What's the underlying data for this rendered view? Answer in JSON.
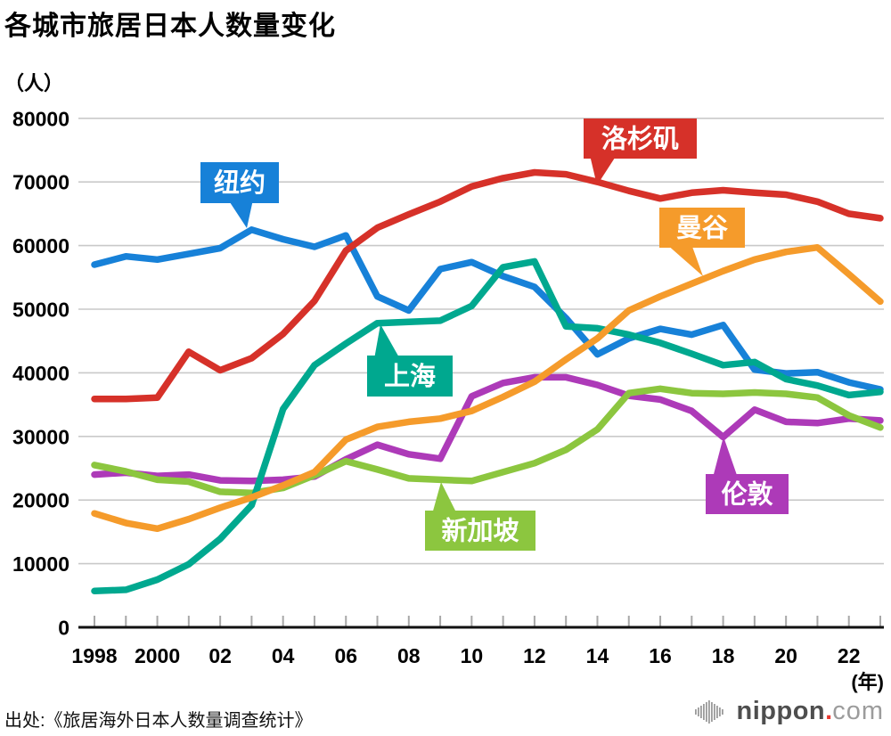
{
  "title": "各城市旅居日本人数量变化",
  "y_unit_label": "（人）",
  "x_unit_label": "(年)",
  "source": "出处:《旅居海外日本人数量调查统计》",
  "logo": {
    "name": "nippon",
    "dot": ".",
    "tld": "com"
  },
  "chart_data": {
    "type": "line",
    "x": [
      1998,
      1999,
      2000,
      2001,
      2002,
      2003,
      2004,
      2005,
      2006,
      2007,
      2008,
      2009,
      2010,
      2011,
      2012,
      2013,
      2014,
      2015,
      2016,
      2017,
      2018,
      2019,
      2020,
      2021,
      2022,
      2023
    ],
    "x_tick_labels": [
      {
        "year": 1998,
        "label": "1998"
      },
      {
        "year": 2000,
        "label": "2000"
      },
      {
        "year": 2002,
        "label": "02"
      },
      {
        "year": 2004,
        "label": "04"
      },
      {
        "year": 2006,
        "label": "06"
      },
      {
        "year": 2008,
        "label": "08"
      },
      {
        "year": 2010,
        "label": "10"
      },
      {
        "year": 2012,
        "label": "12"
      },
      {
        "year": 2014,
        "label": "14"
      },
      {
        "year": 2016,
        "label": "16"
      },
      {
        "year": 2018,
        "label": "18"
      },
      {
        "year": 2020,
        "label": "20"
      },
      {
        "year": 2022,
        "label": "22"
      }
    ],
    "y_ticks": [
      0,
      10000,
      20000,
      30000,
      40000,
      50000,
      60000,
      70000,
      80000
    ],
    "ylim": [
      0,
      80000
    ],
    "xlim": [
      1998,
      2023
    ],
    "grid": true,
    "legend_style": "callout-labels-on-lines",
    "series": [
      {
        "key": "la",
        "name": "洛杉矶",
        "color": "#d63129",
        "values": [
          35900,
          35900,
          36100,
          43300,
          40400,
          42300,
          46100,
          51300,
          59200,
          62800,
          64900,
          66900,
          69300,
          70600,
          71500,
          71200,
          70000,
          68600,
          67400,
          68300,
          68700,
          68300,
          68000,
          66900,
          65000,
          64300
        ]
      },
      {
        "key": "ny",
        "name": "纽约",
        "color": "#1781d8",
        "values": [
          57000,
          58300,
          57800,
          58700,
          59600,
          62500,
          61000,
          59800,
          61600,
          52000,
          49800,
          56300,
          57400,
          55200,
          53500,
          48600,
          42900,
          45400,
          46900,
          46000,
          47500,
          40500,
          39900,
          40100,
          38500,
          37400
        ]
      },
      {
        "key": "bangkok",
        "name": "曼谷",
        "color": "#f59b2b",
        "values": [
          17900,
          16400,
          15500,
          17000,
          18800,
          20400,
          22300,
          24400,
          29500,
          31500,
          32300,
          32800,
          34000,
          36200,
          38600,
          42100,
          45400,
          49800,
          52000,
          54000,
          56000,
          57800,
          59000,
          59700,
          55500,
          51200
        ]
      },
      {
        "key": "shanghai",
        "name": "上海",
        "color": "#00a88f",
        "values": [
          5700,
          5900,
          7500,
          9900,
          13900,
          19200,
          34300,
          41200,
          44600,
          47800,
          48000,
          48200,
          50500,
          56600,
          57500,
          47300,
          47000,
          46000,
          44700,
          43000,
          41200,
          41700,
          39000,
          38000,
          36500,
          37000
        ]
      },
      {
        "key": "singapore",
        "name": "新加坡",
        "color": "#8cc63f",
        "values": [
          25500,
          24500,
          23200,
          22900,
          21300,
          21100,
          21900,
          23900,
          26100,
          24800,
          23400,
          23200,
          23000,
          24400,
          25800,
          27900,
          31100,
          36800,
          37500,
          36800,
          36700,
          36900,
          36700,
          36100,
          33300,
          31400
        ]
      },
      {
        "key": "london",
        "name": "伦敦",
        "color": "#ad3ab8",
        "values": [
          24000,
          24300,
          23800,
          24000,
          23100,
          23000,
          23200,
          23700,
          26400,
          28700,
          27200,
          26500,
          36300,
          38400,
          39300,
          39300,
          38100,
          36400,
          35800,
          34000,
          29900,
          34200,
          32300,
          32100,
          32800,
          32500
        ]
      }
    ]
  }
}
